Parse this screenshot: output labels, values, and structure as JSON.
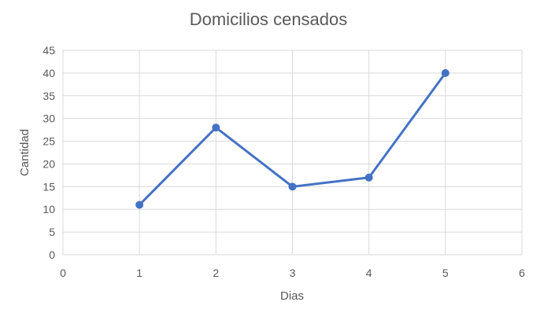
{
  "chart_data": {
    "type": "scatter",
    "title": "Domicilios censados",
    "xlabel": "Dias",
    "ylabel": "Cantidad",
    "xlim": [
      0,
      6
    ],
    "ylim": [
      0,
      45
    ],
    "xticks": [
      "0",
      "1",
      "2",
      "3",
      "4",
      "5",
      "6"
    ],
    "yticks": [
      "0",
      "5",
      "10",
      "15",
      "20",
      "25",
      "30",
      "35",
      "40",
      "45"
    ],
    "grid": true,
    "legend": "none",
    "series": [
      {
        "color": "#4472C4",
        "line": true,
        "markers": true,
        "points": [
          {
            "x": 1,
            "y": 11
          },
          {
            "x": 2,
            "y": 28
          },
          {
            "x": 3,
            "y": 15
          },
          {
            "x": 4,
            "y": 17
          },
          {
            "x": 5,
            "y": 40
          }
        ]
      }
    ]
  }
}
